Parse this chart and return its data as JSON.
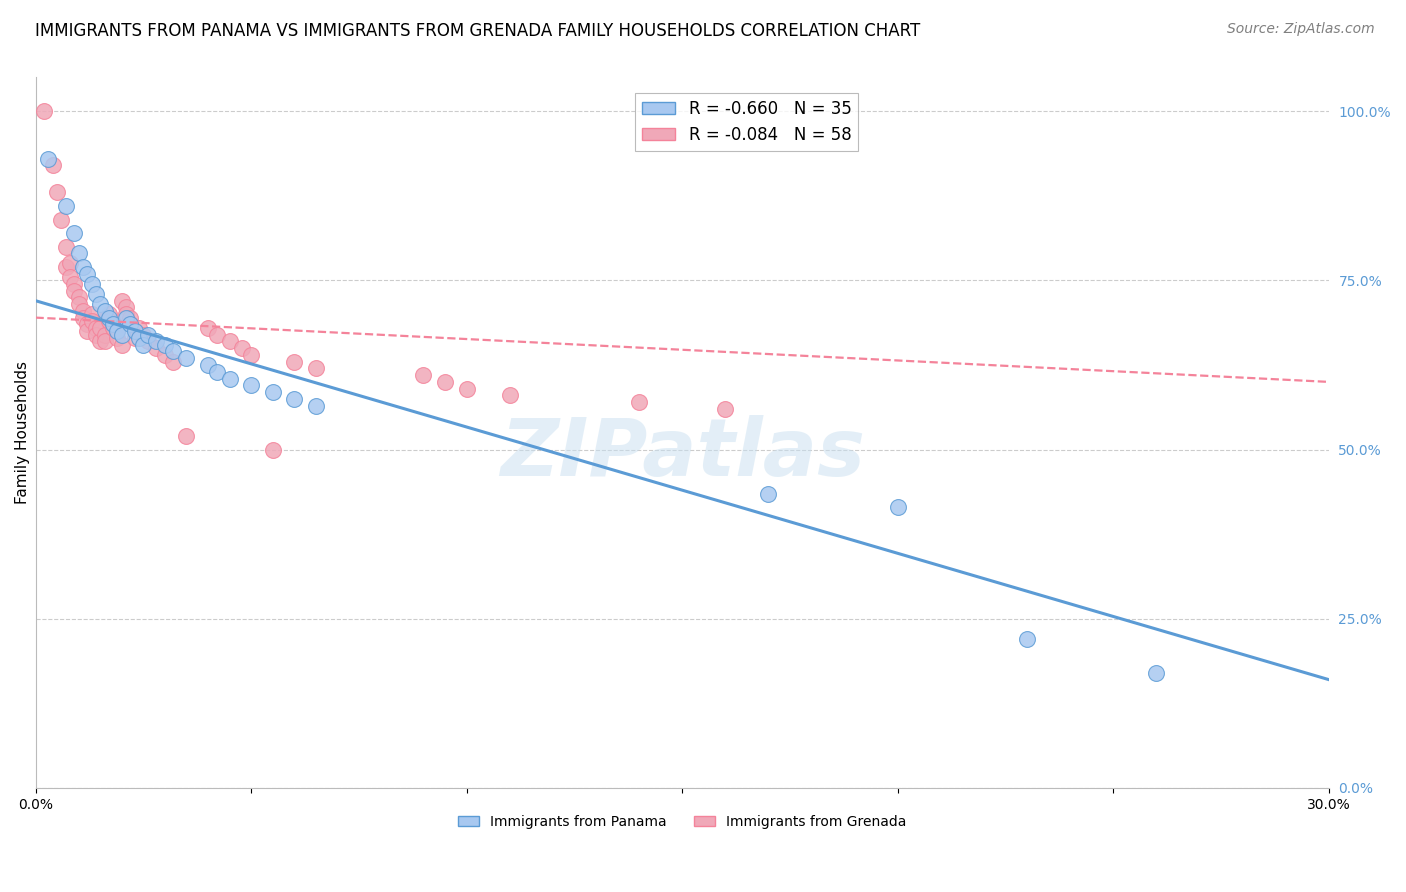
{
  "title": "IMMIGRANTS FROM PANAMA VS IMMIGRANTS FROM GRENADA FAMILY HOUSEHOLDS CORRELATION CHART",
  "source": "Source: ZipAtlas.com",
  "ylabel": "Family Households",
  "x_min": 0.0,
  "x_max": 0.3,
  "y_min": 0.0,
  "y_max": 1.05,
  "right_yticks": [
    0.0,
    0.25,
    0.5,
    0.75,
    1.0
  ],
  "right_yticklabels": [
    "0.0%",
    "25.0%",
    "50.0%",
    "75.0%",
    "100.0%"
  ],
  "bottom_xticks": [
    0.0,
    0.05,
    0.1,
    0.15,
    0.2,
    0.25,
    0.3
  ],
  "bottom_xticklabels": [
    "0.0%",
    "",
    "",
    "",
    "",
    "",
    "30.0%"
  ],
  "panama_scatter": [
    [
      0.003,
      0.93
    ],
    [
      0.007,
      0.86
    ],
    [
      0.009,
      0.82
    ],
    [
      0.01,
      0.79
    ],
    [
      0.011,
      0.77
    ],
    [
      0.012,
      0.76
    ],
    [
      0.013,
      0.745
    ],
    [
      0.014,
      0.73
    ],
    [
      0.015,
      0.715
    ],
    [
      0.016,
      0.705
    ],
    [
      0.017,
      0.695
    ],
    [
      0.018,
      0.685
    ],
    [
      0.019,
      0.675
    ],
    [
      0.02,
      0.67
    ],
    [
      0.021,
      0.695
    ],
    [
      0.022,
      0.685
    ],
    [
      0.023,
      0.675
    ],
    [
      0.024,
      0.665
    ],
    [
      0.025,
      0.655
    ],
    [
      0.026,
      0.67
    ],
    [
      0.028,
      0.66
    ],
    [
      0.03,
      0.655
    ],
    [
      0.032,
      0.645
    ],
    [
      0.035,
      0.635
    ],
    [
      0.04,
      0.625
    ],
    [
      0.042,
      0.615
    ],
    [
      0.045,
      0.605
    ],
    [
      0.05,
      0.595
    ],
    [
      0.055,
      0.585
    ],
    [
      0.06,
      0.575
    ],
    [
      0.065,
      0.565
    ],
    [
      0.17,
      0.435
    ],
    [
      0.2,
      0.415
    ],
    [
      0.23,
      0.22
    ],
    [
      0.26,
      0.17
    ]
  ],
  "grenada_scatter": [
    [
      0.002,
      1.0
    ],
    [
      0.004,
      0.92
    ],
    [
      0.005,
      0.88
    ],
    [
      0.006,
      0.84
    ],
    [
      0.007,
      0.8
    ],
    [
      0.007,
      0.77
    ],
    [
      0.008,
      0.775
    ],
    [
      0.008,
      0.755
    ],
    [
      0.009,
      0.745
    ],
    [
      0.009,
      0.735
    ],
    [
      0.01,
      0.725
    ],
    [
      0.01,
      0.715
    ],
    [
      0.011,
      0.705
    ],
    [
      0.011,
      0.695
    ],
    [
      0.012,
      0.685
    ],
    [
      0.012,
      0.675
    ],
    [
      0.013,
      0.7
    ],
    [
      0.013,
      0.69
    ],
    [
      0.014,
      0.68
    ],
    [
      0.014,
      0.67
    ],
    [
      0.015,
      0.66
    ],
    [
      0.015,
      0.68
    ],
    [
      0.016,
      0.67
    ],
    [
      0.016,
      0.66
    ],
    [
      0.017,
      0.7
    ],
    [
      0.017,
      0.69
    ],
    [
      0.018,
      0.68
    ],
    [
      0.019,
      0.675
    ],
    [
      0.019,
      0.665
    ],
    [
      0.02,
      0.655
    ],
    [
      0.02,
      0.72
    ],
    [
      0.021,
      0.71
    ],
    [
      0.021,
      0.7
    ],
    [
      0.022,
      0.695
    ],
    [
      0.022,
      0.685
    ],
    [
      0.023,
      0.675
    ],
    [
      0.023,
      0.665
    ],
    [
      0.024,
      0.68
    ],
    [
      0.025,
      0.67
    ],
    [
      0.026,
      0.66
    ],
    [
      0.028,
      0.65
    ],
    [
      0.03,
      0.64
    ],
    [
      0.032,
      0.63
    ],
    [
      0.035,
      0.52
    ],
    [
      0.04,
      0.68
    ],
    [
      0.042,
      0.67
    ],
    [
      0.045,
      0.66
    ],
    [
      0.048,
      0.65
    ],
    [
      0.05,
      0.64
    ],
    [
      0.055,
      0.5
    ],
    [
      0.06,
      0.63
    ],
    [
      0.065,
      0.62
    ],
    [
      0.09,
      0.61
    ],
    [
      0.095,
      0.6
    ],
    [
      0.1,
      0.59
    ],
    [
      0.11,
      0.58
    ],
    [
      0.14,
      0.57
    ],
    [
      0.16,
      0.56
    ]
  ],
  "panama_line_x": [
    0.0,
    0.3
  ],
  "panama_line_y": [
    0.72,
    0.16
  ],
  "grenada_line_x": [
    0.0,
    0.3
  ],
  "grenada_line_y": [
    0.695,
    0.6
  ],
  "panama_color": "#5b9bd5",
  "grenada_color": "#f4839a",
  "panama_scatter_color": "#a8c8f0",
  "grenada_scatter_color": "#f0a8b8",
  "watermark": "ZIPatlas",
  "grid_color": "#cccccc",
  "right_axis_color": "#5b9bd5",
  "title_fontsize": 12,
  "source_fontsize": 10,
  "axis_label_fontsize": 11,
  "tick_fontsize": 10,
  "legend_fontsize": 11
}
